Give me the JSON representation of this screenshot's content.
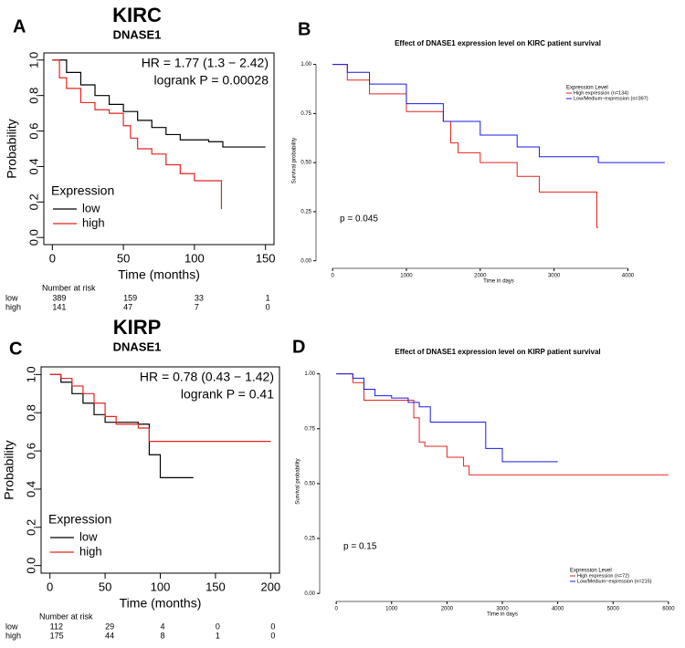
{
  "chart_data": [
    {
      "type": "line",
      "step": true,
      "style": "km",
      "panel": "A",
      "title": "KIRC",
      "subtitle": "DNASE1",
      "annotations": [
        "HR = 1.77 (1.3 − 2.42)",
        "logrank P = 0.00028"
      ],
      "xlabel": "Time (months)",
      "ylabel": "Probability",
      "legend_title": "Expression",
      "legend": "lower left",
      "xlim": [
        -6,
        156
      ],
      "ylim": [
        -0.04,
        1.04
      ],
      "xticks": [
        0,
        50,
        100,
        150
      ],
      "yticks": [
        {
          "value": 0,
          "label": "0.0"
        },
        {
          "value": 0.2,
          "label": "0.2"
        },
        {
          "value": 0.4,
          "label": "0.4"
        },
        {
          "value": 0.6,
          "label": "0.6"
        },
        {
          "value": 0.8,
          "label": "0.8"
        },
        {
          "value": 1,
          "label": "1.0"
        }
      ],
      "series": [
        {
          "name": "low",
          "color": "#000000",
          "x": [
            0,
            10,
            20,
            30,
            40,
            50,
            60,
            70,
            80,
            90,
            100,
            110,
            120,
            150
          ],
          "values": [
            1.0,
            0.93,
            0.86,
            0.8,
            0.75,
            0.71,
            0.66,
            0.62,
            0.58,
            0.55,
            0.55,
            0.54,
            0.51,
            0.51
          ]
        },
        {
          "name": "high",
          "color": "#e8231f",
          "x": [
            0,
            5,
            10,
            20,
            30,
            40,
            50,
            55,
            60,
            70,
            80,
            90,
            100,
            110,
            118,
            119
          ],
          "values": [
            1.0,
            0.9,
            0.84,
            0.76,
            0.72,
            0.7,
            0.63,
            0.56,
            0.5,
            0.47,
            0.41,
            0.36,
            0.32,
            0.32,
            0.32,
            0.16
          ]
        }
      ],
      "risk_table": {
        "title": "Number at risk",
        "rows": [
          {
            "name": "low",
            "values": [
              389,
              159,
              33,
              1
            ]
          },
          {
            "name": "high",
            "values": [
              141,
              47,
              7,
              0
            ]
          }
        ]
      }
    },
    {
      "type": "line",
      "step": true,
      "style": "tcga",
      "panel": "B",
      "title": "Effect of DNASE1 expression level on KIRC patient survival",
      "annotations": [
        "p = 0.045"
      ],
      "xlabel": "Time in days",
      "ylabel": "Survival probability",
      "legend_title": "Expression Level",
      "legend": "upper right",
      "xlim": [
        -150,
        4650
      ],
      "ylim": [
        -0.02,
        1.04
      ],
      "xticks": [
        0,
        1000,
        2000,
        3000,
        4000
      ],
      "yticks": [
        {
          "value": 0,
          "label": "0.00"
        },
        {
          "value": 0.25,
          "label": "0.25"
        },
        {
          "value": 0.5,
          "label": "0.50"
        },
        {
          "value": 0.75,
          "label": "0.75"
        },
        {
          "value": 1,
          "label": "1.00"
        }
      ],
      "series": [
        {
          "name": "High expression (n=134)",
          "color": "#e8231f",
          "x": [
            0,
            200,
            500,
            1000,
            1500,
            1600,
            1700,
            2000,
            2500,
            2800,
            3500,
            3580,
            3600
          ],
          "values": [
            1.0,
            0.92,
            0.85,
            0.76,
            0.71,
            0.6,
            0.55,
            0.5,
            0.43,
            0.35,
            0.35,
            0.17,
            0.17
          ]
        },
        {
          "name": "Low/Medium−expression (n=397)",
          "color": "#1a1ae6",
          "x": [
            0,
            200,
            500,
            1000,
            1500,
            2000,
            2500,
            2800,
            3000,
            3500,
            3600,
            4500
          ],
          "values": [
            1.0,
            0.96,
            0.9,
            0.8,
            0.71,
            0.64,
            0.58,
            0.53,
            0.53,
            0.53,
            0.5,
            0.5
          ]
        }
      ]
    },
    {
      "type": "line",
      "step": true,
      "style": "km",
      "panel": "C",
      "title": "KIRP",
      "subtitle": "DNASE1",
      "annotations": [
        "HR = 0.78 (0.43 − 1.42)",
        "logrank P = 0.41"
      ],
      "xlabel": "Time (months)",
      "ylabel": "Probability",
      "legend_title": "Expression",
      "legend": "lower left",
      "xlim": [
        -8,
        208
      ],
      "ylim": [
        -0.04,
        1.04
      ],
      "xticks": [
        0,
        50,
        100,
        150,
        200
      ],
      "yticks": [
        {
          "value": 0,
          "label": "0.0"
        },
        {
          "value": 0.2,
          "label": "0.2"
        },
        {
          "value": 0.4,
          "label": "0.4"
        },
        {
          "value": 0.6,
          "label": "0.6"
        },
        {
          "value": 0.8,
          "label": "0.8"
        },
        {
          "value": 1,
          "label": "1.0"
        }
      ],
      "series": [
        {
          "name": "low",
          "color": "#000000",
          "x": [
            0,
            10,
            20,
            30,
            40,
            50,
            60,
            80,
            90,
            95,
            100,
            130
          ],
          "values": [
            1.0,
            0.96,
            0.9,
            0.85,
            0.79,
            0.75,
            0.75,
            0.74,
            0.58,
            0.58,
            0.46,
            0.46
          ]
        },
        {
          "name": "high",
          "color": "#e8231f",
          "x": [
            0,
            10,
            20,
            30,
            40,
            50,
            60,
            80,
            90,
            100,
            150,
            200
          ],
          "values": [
            1.0,
            0.98,
            0.94,
            0.9,
            0.85,
            0.78,
            0.74,
            0.72,
            0.65,
            0.65,
            0.65,
            0.65
          ]
        }
      ],
      "risk_table": {
        "title": "Number at risk",
        "rows": [
          {
            "name": "low",
            "values": [
              112,
              29,
              4,
              0,
              0
            ]
          },
          {
            "name": "high",
            "values": [
              175,
              44,
              8,
              1,
              0
            ]
          }
        ]
      }
    },
    {
      "type": "line",
      "step": true,
      "style": "tcga",
      "panel": "D",
      "title": "Effect of DNASE1 expression level on KIRP patient survival",
      "annotations": [
        "p = 0.15"
      ],
      "xlabel": "Time in days",
      "ylabel": "Survival probability",
      "legend_title": "Expression Level",
      "legend": "lower right",
      "xlim": [
        -200,
        6200
      ],
      "ylim": [
        -0.02,
        1.04
      ],
      "xticks": [
        0,
        1000,
        2000,
        3000,
        4000,
        5000,
        6000
      ],
      "yticks": [
        {
          "value": 0,
          "label": "0.00"
        },
        {
          "value": 0.25,
          "label": "0.25"
        },
        {
          "value": 0.5,
          "label": "0.50"
        },
        {
          "value": 0.75,
          "label": "0.75"
        },
        {
          "value": 1,
          "label": "1.00"
        }
      ],
      "series": [
        {
          "name": "High expression (n=72)",
          "color": "#e8231f",
          "x": [
            0,
            300,
            500,
            1000,
            1400,
            1500,
            1600,
            2000,
            2300,
            2400,
            6000
          ],
          "values": [
            1.0,
            0.96,
            0.88,
            0.88,
            0.8,
            0.69,
            0.67,
            0.62,
            0.58,
            0.54,
            0.54
          ]
        },
        {
          "name": "Low/Medium−expression (n=215)",
          "color": "#1a1ae6",
          "x": [
            0,
            300,
            500,
            700,
            1000,
            1300,
            1500,
            1700,
            2600,
            2700,
            3000,
            4000
          ],
          "values": [
            1.0,
            0.98,
            0.93,
            0.9,
            0.89,
            0.87,
            0.85,
            0.78,
            0.78,
            0.66,
            0.6,
            0.6
          ]
        }
      ]
    }
  ]
}
